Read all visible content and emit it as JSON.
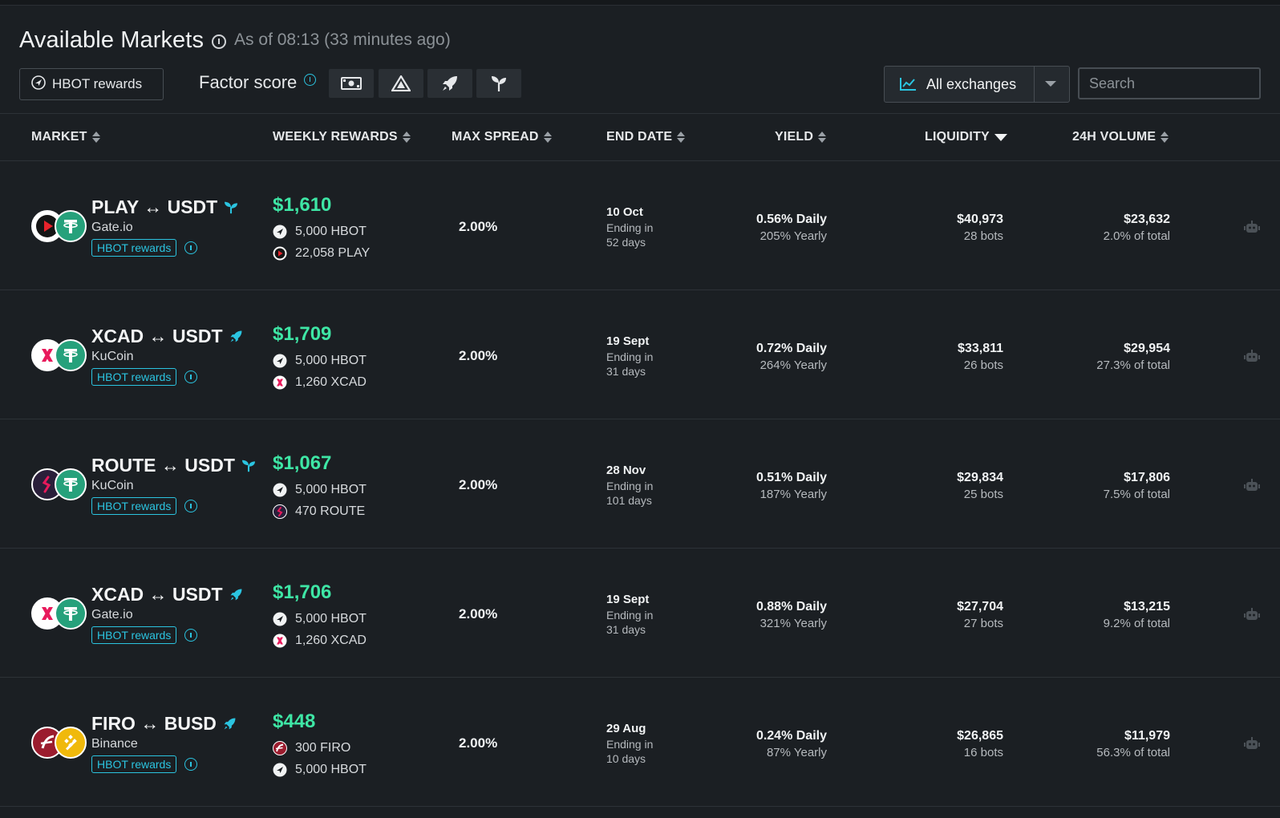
{
  "header": {
    "title": "Available Markets",
    "as_of": "As of 08:13 (33 minutes ago)"
  },
  "toolbar": {
    "rewards_button": "HBOT rewards",
    "factor_score_label": "Factor score",
    "factor_filters": [
      "money-icon",
      "triangle-icon",
      "rocket-icon",
      "sprout-icon"
    ],
    "exchange_select": "All exchanges",
    "search_placeholder": "Search"
  },
  "columns": {
    "market": "MARKET",
    "weekly_rewards": "WEEKLY REWARDS",
    "max_spread": "MAX SPREAD",
    "end_date": "END DATE",
    "yield": "YIELD",
    "liquidity": "LIQUIDITY",
    "volume": "24H VOLUME"
  },
  "colors": {
    "accent": "#2bc4e0",
    "reward_green": "#3ee6a5",
    "background": "#1b1f23"
  },
  "rows": [
    {
      "pair": "PLAY ↔ USDT",
      "category_icon": "sprout-icon",
      "exchange": "Gate.io",
      "badge": "HBOT rewards",
      "base_coin": "play",
      "quote_coin": "usdt",
      "reward_total": "$1,610",
      "rewards": [
        {
          "icon": "hbot",
          "text": "5,000 HBOT"
        },
        {
          "icon": "play",
          "text": "22,058 PLAY"
        }
      ],
      "max_spread": "2.00%",
      "end_date": "10 Oct",
      "ending_label": "Ending in",
      "ending_days": "52 days",
      "yield_daily": "0.56% Daily",
      "yield_yearly": "205% Yearly",
      "liquidity": "$40,973",
      "bots": "28 bots",
      "volume": "$23,632",
      "volume_share": "2.0% of total"
    },
    {
      "pair": "XCAD ↔ USDT",
      "category_icon": "rocket-icon",
      "exchange": "KuCoin",
      "badge": "HBOT rewards",
      "base_coin": "xcad",
      "quote_coin": "usdt",
      "reward_total": "$1,709",
      "rewards": [
        {
          "icon": "hbot",
          "text": "5,000 HBOT"
        },
        {
          "icon": "xcad",
          "text": "1,260 XCAD"
        }
      ],
      "max_spread": "2.00%",
      "end_date": "19 Sept",
      "ending_label": "Ending in",
      "ending_days": "31 days",
      "yield_daily": "0.72% Daily",
      "yield_yearly": "264% Yearly",
      "liquidity": "$33,811",
      "bots": "26 bots",
      "volume": "$29,954",
      "volume_share": "27.3% of total"
    },
    {
      "pair": "ROUTE ↔ USDT",
      "category_icon": "sprout-icon",
      "exchange": "KuCoin",
      "badge": "HBOT rewards",
      "base_coin": "route",
      "quote_coin": "usdt",
      "reward_total": "$1,067",
      "rewards": [
        {
          "icon": "hbot",
          "text": "5,000 HBOT"
        },
        {
          "icon": "route",
          "text": "470 ROUTE"
        }
      ],
      "max_spread": "2.00%",
      "end_date": "28 Nov",
      "ending_label": "Ending in",
      "ending_days": "101 days",
      "yield_daily": "0.51% Daily",
      "yield_yearly": "187% Yearly",
      "liquidity": "$29,834",
      "bots": "25 bots",
      "volume": "$17,806",
      "volume_share": "7.5% of total"
    },
    {
      "pair": "XCAD ↔ USDT",
      "category_icon": "rocket-icon",
      "exchange": "Gate.io",
      "badge": "HBOT rewards",
      "base_coin": "xcad",
      "quote_coin": "usdt",
      "reward_total": "$1,706",
      "rewards": [
        {
          "icon": "hbot",
          "text": "5,000 HBOT"
        },
        {
          "icon": "xcad",
          "text": "1,260 XCAD"
        }
      ],
      "max_spread": "2.00%",
      "end_date": "19 Sept",
      "ending_label": "Ending in",
      "ending_days": "31 days",
      "yield_daily": "0.88% Daily",
      "yield_yearly": "321% Yearly",
      "liquidity": "$27,704",
      "bots": "27 bots",
      "volume": "$13,215",
      "volume_share": "9.2% of total"
    },
    {
      "pair": "FIRO ↔ BUSD",
      "category_icon": "rocket-icon",
      "exchange": "Binance",
      "badge": "HBOT rewards",
      "base_coin": "firo",
      "quote_coin": "busd",
      "reward_total": "$448",
      "rewards": [
        {
          "icon": "firo",
          "text": "300 FIRO"
        },
        {
          "icon": "hbot",
          "text": "5,000 HBOT"
        }
      ],
      "max_spread": "2.00%",
      "end_date": "29 Aug",
      "ending_label": "Ending in",
      "ending_days": "10 days",
      "yield_daily": "0.24% Daily",
      "yield_yearly": "87% Yearly",
      "liquidity": "$26,865",
      "bots": "16 bots",
      "volume": "$11,979",
      "volume_share": "56.3% of total"
    }
  ]
}
